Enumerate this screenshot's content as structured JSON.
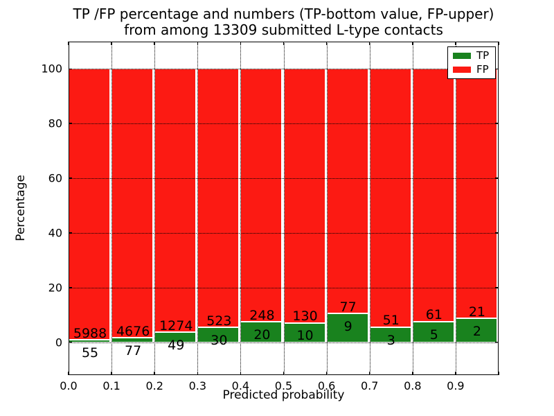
{
  "chart_data": {
    "type": "bar",
    "stacked": true,
    "percentage_scale": true,
    "title_line1": "TP /FP percentage and numbers (TP-bottom value, FP-upper)",
    "title_line2": "from among 13309 submitted L-type contacts",
    "xlabel": "Predicted probability",
    "ylabel": "Percentage",
    "total_contacts": 13309,
    "x_tick_labels": [
      "0.0",
      "0.1",
      "0.2",
      "0.3",
      "0.4",
      "0.5",
      "0.6",
      "0.7",
      "0.8",
      "0.9"
    ],
    "y_ticks": [
      0,
      20,
      40,
      60,
      80,
      100
    ],
    "xlim": [
      0,
      1
    ],
    "ylim": [
      -12,
      110
    ],
    "grid": "dotted",
    "legend": {
      "position": "upper right",
      "entries": [
        {
          "label": "TP",
          "color": "#19821e"
        },
        {
          "label": "FP",
          "color": "#fc1a13"
        }
      ]
    },
    "bins": [
      {
        "range": "0.0-0.1",
        "tp": 55,
        "fp": 5988,
        "tp_pct": 0.91
      },
      {
        "range": "0.1-0.2",
        "tp": 77,
        "fp": 4676,
        "tp_pct": 1.62
      },
      {
        "range": "0.2-0.3",
        "tp": 49,
        "fp": 1274,
        "tp_pct": 3.7
      },
      {
        "range": "0.3-0.4",
        "tp": 30,
        "fp": 523,
        "tp_pct": 5.43
      },
      {
        "range": "0.4-0.5",
        "tp": 20,
        "fp": 248,
        "tp_pct": 7.46
      },
      {
        "range": "0.5-0.6",
        "tp": 10,
        "fp": 130,
        "tp_pct": 7.14
      },
      {
        "range": "0.6-0.7",
        "tp": 9,
        "fp": 77,
        "tp_pct": 10.47
      },
      {
        "range": "0.7-0.8",
        "tp": 3,
        "fp": 51,
        "tp_pct": 5.56
      },
      {
        "range": "0.8-0.9",
        "tp": 5,
        "fp": 61,
        "tp_pct": 7.58
      },
      {
        "range": "0.9-1.0",
        "tp": 2,
        "fp": 21,
        "tp_pct": 8.7
      }
    ]
  }
}
